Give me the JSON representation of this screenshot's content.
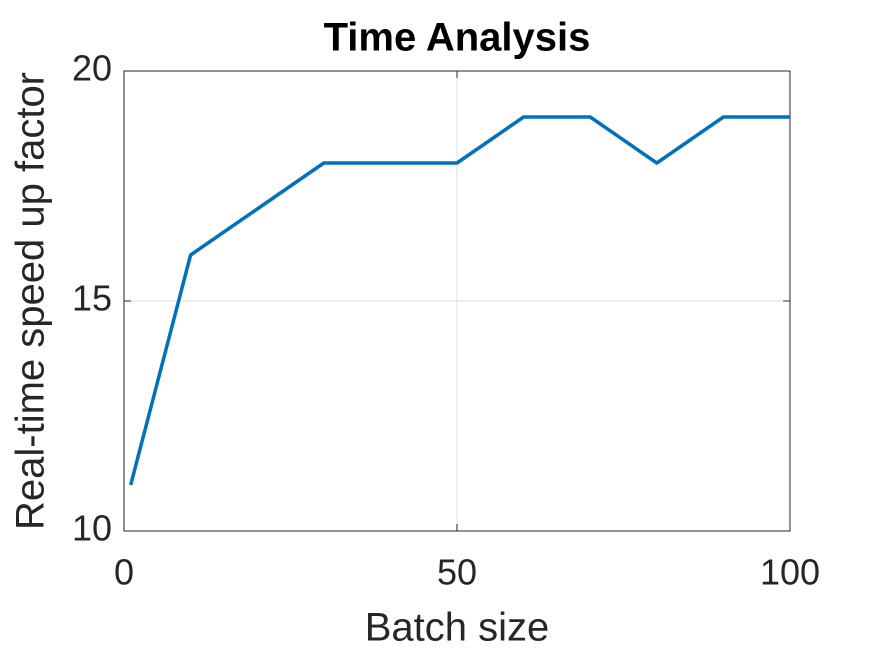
{
  "chart_data": {
    "type": "line",
    "title": "Time Analysis",
    "x_label": "Batch size",
    "y_label": "Real-time speed up factor",
    "x": [
      1,
      10,
      20,
      30,
      40,
      50,
      60,
      70,
      80,
      90,
      100
    ],
    "series": [
      {
        "color": "#0072bd",
        "values": [
          11,
          16,
          17,
          18,
          18,
          18,
          19,
          19,
          18,
          19,
          19
        ]
      }
    ],
    "xlim": [
      0,
      100
    ],
    "xticks": [
      0,
      50,
      100
    ],
    "ylim": [
      10,
      20
    ],
    "yticks": [
      10,
      15,
      20
    ],
    "grid": true
  }
}
